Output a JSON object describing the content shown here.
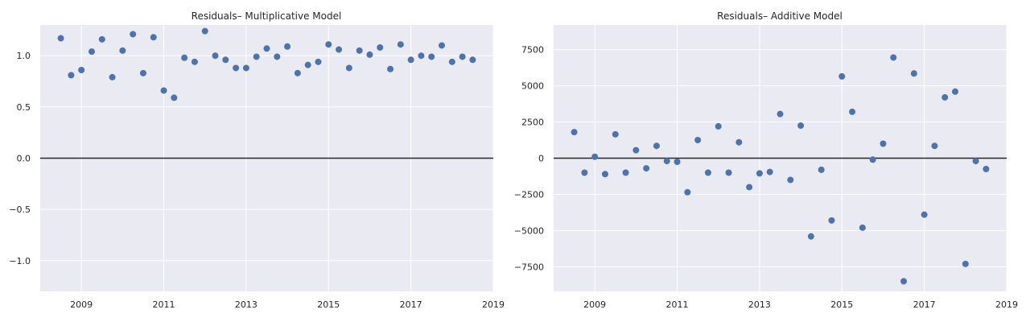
{
  "chart_data": [
    {
      "type": "scatter",
      "title": "Residuals– Multiplicative Model",
      "xlabel": "",
      "ylabel": "",
      "xlim": [
        2008.0,
        2019.0
      ],
      "ylim": [
        -1.3,
        1.3
      ],
      "xticks": [
        2009,
        2011,
        2013,
        2015,
        2017,
        2019
      ],
      "xtick_labels": [
        "2009",
        "2011",
        "2013",
        "2015",
        "2017",
        "2019"
      ],
      "yticks": [
        1.0,
        0.5,
        0.0,
        -0.5,
        -1.0
      ],
      "ytick_labels": [
        "1.0",
        "0.5",
        "0.0",
        "−0.5",
        "−1.0"
      ],
      "grid": true,
      "reference_line_y": 0,
      "color": "#4c72b0",
      "series": [
        {
          "x": [
            2008.5,
            2008.75,
            2009.0,
            2009.25,
            2009.5,
            2009.75,
            2010.0,
            2010.25,
            2010.5,
            2010.75,
            2011.0,
            2011.25,
            2011.5,
            2011.75,
            2012.0,
            2012.25,
            2012.5,
            2012.75,
            2013.0,
            2013.25,
            2013.5,
            2013.75,
            2014.0,
            2014.25,
            2014.5,
            2014.75,
            2015.0,
            2015.25,
            2015.5,
            2015.75,
            2016.0,
            2016.25,
            2016.5,
            2016.75,
            2017.0,
            2017.25,
            2017.5,
            2017.75,
            2018.0,
            2018.25,
            2018.5
          ],
          "y": [
            1.17,
            0.81,
            0.86,
            1.04,
            1.16,
            0.79,
            1.05,
            1.21,
            0.83,
            1.18,
            0.66,
            0.59,
            0.98,
            0.94,
            1.24,
            1.0,
            0.96,
            0.88,
            0.88,
            0.99,
            1.07,
            0.99,
            1.09,
            0.83,
            0.91,
            0.94,
            1.11,
            1.06,
            0.88,
            1.05,
            1.01,
            1.08,
            0.87,
            1.11,
            0.96,
            1.0,
            0.99,
            1.1,
            0.94,
            0.99,
            0.96
          ]
        }
      ]
    },
    {
      "type": "scatter",
      "title": "Residuals– Additive Model",
      "xlabel": "",
      "ylabel": "",
      "xlim": [
        2008.0,
        2019.0
      ],
      "ylim": [
        -9200,
        9200
      ],
      "xticks": [
        2009,
        2011,
        2013,
        2015,
        2017,
        2019
      ],
      "xtick_labels": [
        "2009",
        "2011",
        "2013",
        "2015",
        "2017",
        "2019"
      ],
      "yticks": [
        7500,
        5000,
        2500,
        0,
        -2500,
        -5000,
        -7500
      ],
      "ytick_labels": [
        "7500",
        "5000",
        "2500",
        "0",
        "−2500",
        "−5000",
        "−7500"
      ],
      "grid": true,
      "reference_line_y": 0,
      "color": "#4c72b0",
      "series": [
        {
          "x": [
            2008.5,
            2008.75,
            2009.0,
            2009.25,
            2009.5,
            2009.75,
            2010.0,
            2010.25,
            2010.5,
            2010.75,
            2011.0,
            2011.25,
            2011.5,
            2011.75,
            2012.0,
            2012.25,
            2012.5,
            2012.75,
            2013.0,
            2013.25,
            2013.5,
            2013.75,
            2014.0,
            2014.25,
            2014.5,
            2014.75,
            2015.0,
            2015.25,
            2015.5,
            2015.75,
            2016.0,
            2016.25,
            2016.5,
            2016.75,
            2017.0,
            2017.25,
            2017.5,
            2017.75,
            2018.0,
            2018.25,
            2018.5
          ],
          "y": [
            1800,
            -1000,
            100,
            -1100,
            1650,
            -1000,
            550,
            -700,
            850,
            -200,
            -250,
            -2350,
            1250,
            -1000,
            2200,
            -1000,
            1100,
            -2000,
            -1050,
            -950,
            3050,
            -1500,
            2250,
            -5400,
            -800,
            -4300,
            5650,
            3200,
            -4800,
            -100,
            1000,
            6950,
            -8500,
            5850,
            -3900,
            850,
            4200,
            4600,
            -7300,
            -200,
            -750
          ]
        }
      ]
    }
  ]
}
